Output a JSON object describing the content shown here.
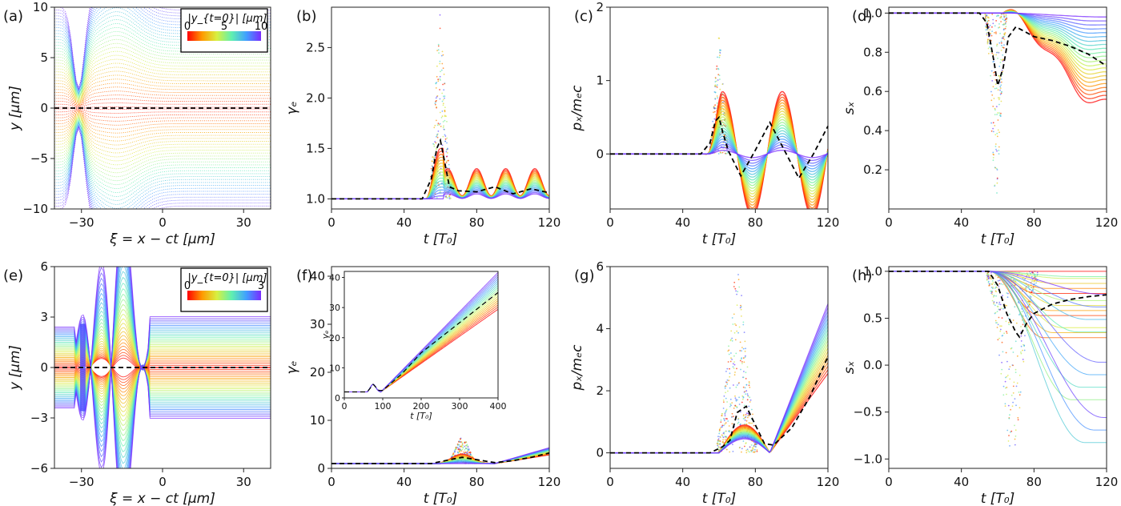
{
  "chart_data": [
    {
      "panel_label": "(a)",
      "type": "line",
      "xlabel": "ξ = x − ct [μm]",
      "ylabel": "y [μm]",
      "xlim": [
        -40,
        40
      ],
      "ylim": [
        -10,
        10
      ],
      "xticks": [
        "−30",
        "0",
        "30"
      ],
      "yticks": [
        "10",
        "5",
        "0",
        "−5",
        "−10"
      ],
      "colorbar": {
        "label": "|y_{t=0}| [μm]",
        "ticks": [
          "0",
          "5",
          "10"
        ],
        "range": [
          0,
          10
        ],
        "colormap": "rainbow (red to violet)"
      },
      "series": [
        {
          "style": "black dashed",
          "x": [
            -40,
            40
          ],
          "y": [
            0,
            0
          ]
        }
      ]
    },
    {
      "panel_label": "(b)",
      "type": "line",
      "xlabel": "t [T₀]",
      "ylabel": "γₑ",
      "xlim": [
        0,
        120
      ],
      "ylim": [
        0.9,
        2.9
      ],
      "xticks": [
        "0",
        "40",
        "80",
        "120"
      ],
      "yticks": [
        "1.0",
        "1.5",
        "2.0",
        "2.5"
      ],
      "series": [
        {
          "style": "black dashed",
          "x": [
            0,
            50,
            55,
            58,
            60,
            62,
            65,
            70,
            80,
            90,
            100,
            110,
            120
          ],
          "y": [
            1.0,
            1.0,
            1.2,
            1.5,
            1.58,
            1.4,
            1.12,
            1.08,
            1.07,
            1.12,
            1.05,
            1.1,
            1.06
          ]
        }
      ]
    },
    {
      "panel_label": "(c)",
      "type": "line",
      "xlabel": "t [T₀]",
      "ylabel": "pₓ/mₑc",
      "xlim": [
        0,
        120
      ],
      "ylim": [
        -0.75,
        2.0
      ],
      "xticks": [
        "0",
        "40",
        "80",
        "120"
      ],
      "yticks": [
        "2",
        "1",
        "0"
      ],
      "series": [
        {
          "style": "black dashed",
          "x": [
            0,
            50,
            55,
            58,
            60,
            62,
            65,
            72,
            80,
            88,
            96,
            104,
            112,
            120
          ],
          "y": [
            0,
            0,
            0.15,
            0.45,
            0.5,
            0.3,
            0.05,
            -0.3,
            0.05,
            0.43,
            0.05,
            -0.33,
            0.0,
            0.38
          ]
        }
      ]
    },
    {
      "panel_label": "(d)",
      "type": "line",
      "xlabel": "t [T₀]",
      "ylabel": "sₓ",
      "xlim": [
        0,
        120
      ],
      "ylim": [
        0.0,
        1.03
      ],
      "xticks": [
        "0",
        "40",
        "80",
        "120"
      ],
      "yticks": [
        "1.0",
        "0.8",
        "0.6",
        "0.4",
        "0.2"
      ],
      "series": [
        {
          "style": "black dashed",
          "x": [
            0,
            50,
            54,
            58,
            60,
            63,
            66,
            70,
            80,
            90,
            100,
            110,
            120
          ],
          "y": [
            1.0,
            1.0,
            0.95,
            0.75,
            0.63,
            0.72,
            0.88,
            0.93,
            0.88,
            0.86,
            0.83,
            0.79,
            0.73
          ]
        }
      ]
    },
    {
      "panel_label": "(e)",
      "type": "line",
      "xlabel": "ξ = x − ct [μm]",
      "ylabel": "y [μm]",
      "xlim": [
        -40,
        40
      ],
      "ylim": [
        -6,
        6
      ],
      "xticks": [
        "−30",
        "0",
        "30"
      ],
      "yticks": [
        "6",
        "3",
        "0",
        "−3",
        "−6"
      ],
      "colorbar": {
        "label": "|y_{t=0}| [μm]",
        "ticks": [
          "0",
          "3"
        ],
        "range": [
          0,
          3
        ],
        "colormap": "rainbow (red to violet)"
      },
      "series": [
        {
          "style": "black dashed",
          "x": [
            -40,
            40
          ],
          "y": [
            0,
            0
          ]
        }
      ]
    },
    {
      "panel_label": "(f)",
      "type": "line",
      "xlabel": "t [T₀]",
      "ylabel": "γₑ",
      "xlim": [
        0,
        120
      ],
      "ylim": [
        0,
        42
      ],
      "xticks": [
        "0",
        "40",
        "80",
        "120"
      ],
      "yticks": [
        "40",
        "30",
        "20",
        "10",
        "0"
      ],
      "series": [
        {
          "style": "black dashed",
          "x": [
            0,
            55,
            65,
            72,
            80,
            90,
            100,
            110,
            120
          ],
          "y": [
            1,
            1,
            1.8,
            2.3,
            1.8,
            1.2,
            1.6,
            2.3,
            3.2
          ]
        }
      ],
      "inset": {
        "xlabel": "t [T₀]",
        "ylabel": "γₑ",
        "xlim": [
          0,
          400
        ],
        "ylim": [
          0,
          42
        ],
        "xticks": [
          "0",
          "100",
          "200",
          "300",
          "400"
        ],
        "yticks": [
          "40",
          "30",
          "20",
          "10",
          "0"
        ],
        "series": [
          {
            "style": "black dashed",
            "x": [
              0,
              60,
              75,
              90,
              100,
              150,
              200,
              300,
              400
            ],
            "y": [
              2,
              2,
              4.5,
              2.5,
              2.5,
              8,
              15,
              25,
              35
            ]
          }
        ]
      }
    },
    {
      "panel_label": "(g)",
      "type": "line",
      "xlabel": "t [T₀]",
      "ylabel": "pₓ/mₑc",
      "xlim": [
        0,
        120
      ],
      "ylim": [
        -0.5,
        6.0
      ],
      "xticks": [
        "0",
        "40",
        "80",
        "120"
      ],
      "yticks": [
        "6",
        "4",
        "2",
        "0"
      ],
      "series": [
        {
          "style": "black dashed",
          "x": [
            0,
            55,
            62,
            66,
            70,
            75,
            80,
            85,
            90,
            100,
            110,
            120
          ],
          "y": [
            0,
            0,
            0.2,
            0.4,
            1.3,
            1.5,
            0.9,
            0.3,
            0.25,
            0.8,
            1.8,
            3.1
          ]
        }
      ]
    },
    {
      "panel_label": "(h)",
      "type": "line",
      "xlabel": "t [T₀]",
      "ylabel": "sₓ",
      "xlim": [
        0,
        120
      ],
      "ylim": [
        -1.1,
        1.05
      ],
      "xticks": [
        "0",
        "40",
        "80",
        "120"
      ],
      "yticks": [
        "1.0",
        "0.5",
        "0.0",
        "−0.5",
        "−1.0"
      ],
      "series": [
        {
          "style": "black dashed",
          "x": [
            0,
            55,
            60,
            65,
            70,
            72,
            76,
            80,
            90,
            100,
            110,
            120
          ],
          "y": [
            1.0,
            1.0,
            0.85,
            0.55,
            0.35,
            0.3,
            0.45,
            0.55,
            0.65,
            0.7,
            0.73,
            0.75
          ]
        }
      ]
    }
  ]
}
